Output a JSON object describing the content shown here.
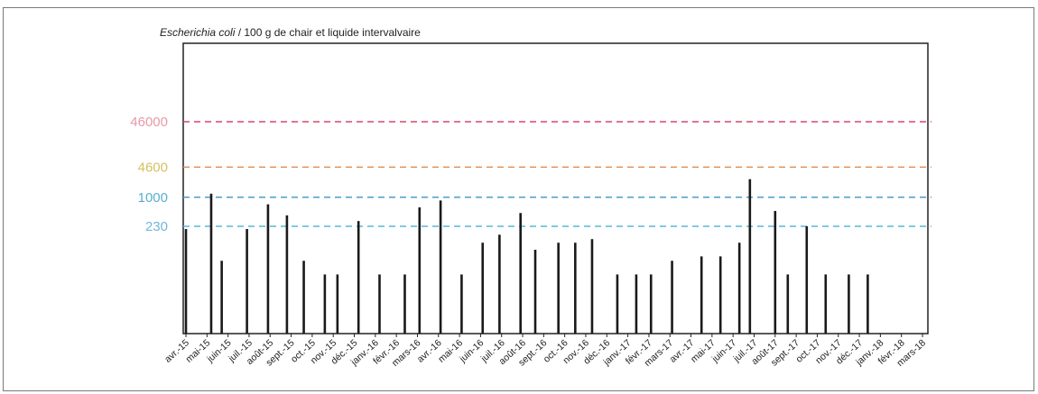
{
  "chart_data": {
    "type": "bar",
    "title_italic": "Escherichia coli",
    "title_rest": " / 100 g de chair et liquide intervalvaire",
    "categories": [
      "avr.-15",
      "mai-15",
      "juin-15",
      "juil.-15",
      "août-15",
      "sept.-15",
      "oct.-15",
      "nov.-15",
      "déc.-15",
      "janv.-16",
      "févr.-16",
      "mars-16",
      "avr.-16",
      "mai-16",
      "juin-16",
      "juil.-16",
      "août-16",
      "sept.-16",
      "oct.-16",
      "nov.-16",
      "déc.-16",
      "janv.-17",
      "févr.-17",
      "mars-17",
      "avr.-17",
      "mai-17",
      "juin-17",
      "juil.-17",
      "août-17",
      "sept.-17",
      "oct.-17",
      "nov.-17",
      "déc.-17",
      "janv.-18",
      "févr.-18",
      "mars-18"
    ],
    "thresholds": [
      {
        "label": "46000",
        "value": 46000,
        "color": "#d9456b",
        "label_color": "#e89aa8"
      },
      {
        "label": "4600",
        "value": 4600,
        "color": "#e0905a",
        "label_color": "#d8c060"
      },
      {
        "label": "1000",
        "value": 1000,
        "color": "#4a9fc8",
        "label_color": "#5aaecf"
      },
      {
        "label": "230",
        "value": 230,
        "color": "#56b8d8",
        "label_color": "#70b8d8"
      }
    ],
    "samples": [
      {
        "month_index": 0.0,
        "value": 200
      },
      {
        "month_index": 1.2,
        "value": 1200
      },
      {
        "month_index": 1.7,
        "value": 40
      },
      {
        "month_index": 2.9,
        "value": 200
      },
      {
        "month_index": 3.9,
        "value": 700
      },
      {
        "month_index": 4.8,
        "value": 400
      },
      {
        "month_index": 5.6,
        "value": 40
      },
      {
        "month_index": 6.6,
        "value": 20
      },
      {
        "month_index": 7.2,
        "value": 20
      },
      {
        "month_index": 8.2,
        "value": 300
      },
      {
        "month_index": 9.2,
        "value": 20
      },
      {
        "month_index": 10.4,
        "value": 20
      },
      {
        "month_index": 11.1,
        "value": 600
      },
      {
        "month_index": 12.1,
        "value": 850
      },
      {
        "month_index": 13.1,
        "value": 20
      },
      {
        "month_index": 14.1,
        "value": 100
      },
      {
        "month_index": 14.9,
        "value": 150
      },
      {
        "month_index": 15.9,
        "value": 450
      },
      {
        "month_index": 16.6,
        "value": 70
      },
      {
        "month_index": 17.7,
        "value": 100
      },
      {
        "month_index": 18.5,
        "value": 100
      },
      {
        "month_index": 19.3,
        "value": 120
      },
      {
        "month_index": 20.5,
        "value": 20
      },
      {
        "month_index": 21.4,
        "value": 20
      },
      {
        "month_index": 22.1,
        "value": 20
      },
      {
        "month_index": 23.1,
        "value": 40
      },
      {
        "month_index": 24.5,
        "value": 50
      },
      {
        "month_index": 25.4,
        "value": 50
      },
      {
        "month_index": 26.3,
        "value": 100
      },
      {
        "month_index": 26.8,
        "value": 2500
      },
      {
        "month_index": 28.0,
        "value": 500
      },
      {
        "month_index": 28.6,
        "value": 20
      },
      {
        "month_index": 29.5,
        "value": 230
      },
      {
        "month_index": 30.4,
        "value": 20
      },
      {
        "month_index": 31.5,
        "value": 20
      },
      {
        "month_index": 32.4,
        "value": 20
      }
    ]
  }
}
